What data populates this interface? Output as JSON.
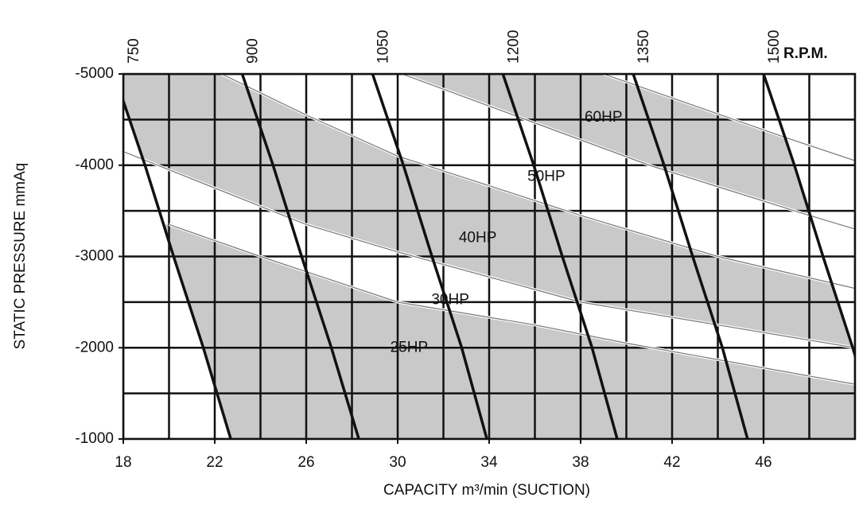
{
  "chart_data": {
    "type": "line",
    "xlabel": "CAPACITY m³/min (SUCTION)",
    "ylabel": "STATIC PRESSURE mmAq",
    "rpm_unit": "R.P.M.",
    "xlim": [
      18,
      50
    ],
    "ylim": [
      -1000,
      -5000
    ],
    "xticks": [
      18,
      22,
      26,
      30,
      34,
      38,
      42,
      46
    ],
    "yticks": [
      -5000,
      -4000,
      -3000,
      -2000,
      -1000
    ],
    "xgrid": [
      18,
      20,
      22,
      24,
      26,
      28,
      30,
      32,
      34,
      36,
      38,
      40,
      42,
      44,
      46,
      48,
      50
    ],
    "ygrid": [
      -5000,
      -4500,
      -4000,
      -3500,
      -3000,
      -2500,
      -2000,
      -1500,
      -1000
    ],
    "grid": true,
    "line_color": "#111111",
    "series": [
      {
        "name": "750",
        "x": [
          17.6,
          18.95,
          20.2,
          21.5,
          22.7
        ],
        "y": [
          -5000,
          -4000,
          -3000,
          -2000,
          -1000
        ]
      },
      {
        "name": "900",
        "x": [
          23.2,
          24.55,
          25.8,
          27.1,
          28.3
        ],
        "y": [
          -5000,
          -4000,
          -3000,
          -2000,
          -1000
        ]
      },
      {
        "name": "1050",
        "x": [
          28.9,
          30.25,
          31.5,
          32.8,
          33.9
        ],
        "y": [
          -5000,
          -4000,
          -3000,
          -2000,
          -1000
        ]
      },
      {
        "name": "1200",
        "x": [
          34.6,
          35.95,
          37.2,
          38.5,
          39.6
        ],
        "y": [
          -5000,
          -4000,
          -3000,
          -2000,
          -1000
        ]
      },
      {
        "name": "1350",
        "x": [
          40.3,
          41.65,
          42.9,
          44.2,
          45.3
        ],
        "y": [
          -5000,
          -4000,
          -3000,
          -2000,
          -1000
        ]
      },
      {
        "name": "1500",
        "x": [
          46.0,
          47.35,
          48.6,
          49.9,
          51.1
        ],
        "y": [
          -5000,
          -4000,
          -3000,
          -2000,
          -1000
        ]
      }
    ],
    "bands": [
      {
        "name": "25HP",
        "fill": "#c9c9c9",
        "x": [
          20,
          24,
          30,
          36,
          40,
          50
        ],
        "y": [
          -3350,
          -3000,
          -2500,
          -2250,
          -2050,
          -1600
        ]
      },
      {
        "name": "30HP",
        "fill": "#ffffff",
        "x": [
          18,
          20,
          26,
          30,
          38,
          50
        ],
        "y": [
          -4150,
          -3950,
          -3350,
          -3050,
          -2500,
          -2000
        ]
      },
      {
        "name": "40HP",
        "fill": "#c9c9c9",
        "x": [
          22.3,
          26,
          30,
          38,
          44,
          50
        ],
        "y": [
          -5000,
          -4550,
          -4100,
          -3450,
          -3000,
          -2650
        ]
      },
      {
        "name": "50HP",
        "fill": "#ffffff",
        "x": [
          30.2,
          35.6,
          41,
          48,
          50
        ],
        "y": [
          -5000,
          -4500,
          -4000,
          -3450,
          -3300
        ]
      },
      {
        "name": "60HP",
        "fill": "#c9c9c9",
        "x": [
          39,
          43,
          47,
          50
        ],
        "y": [
          -5000,
          -4650,
          -4300,
          -4050
        ]
      }
    ]
  }
}
